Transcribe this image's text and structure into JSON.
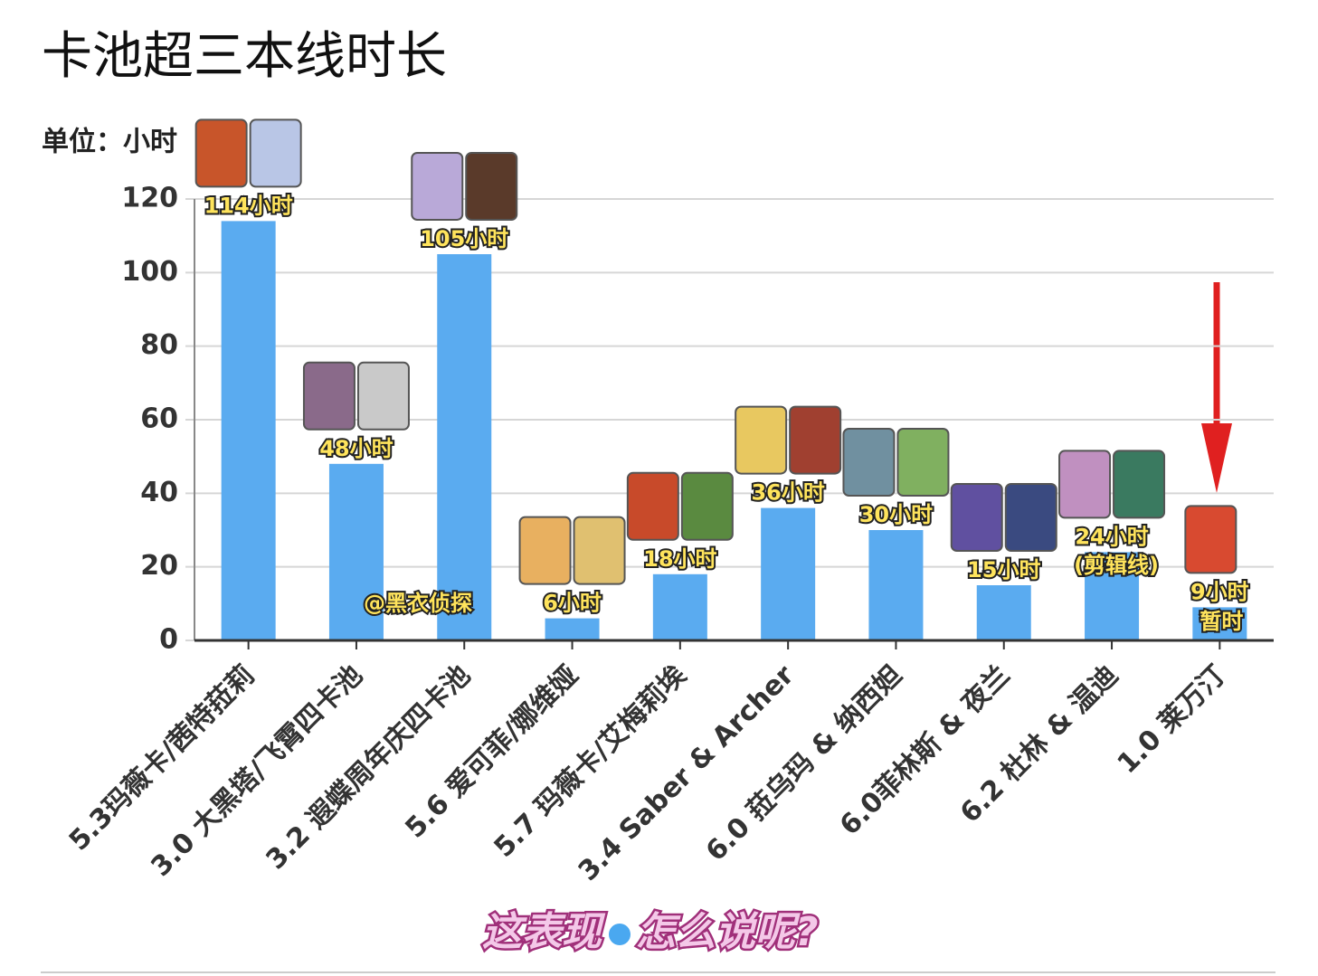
{
  "chart_data": {
    "type": "bar",
    "title": "卡池超三本线时长",
    "subtitle": "单位：小时",
    "categories": [
      "5.3玛薇卡/茜特菈莉",
      "3.0 大黑塔/飞霄四卡池",
      "3.2 遐蝶周年庆四卡池",
      "5.6 爱可菲/娜维娅",
      "5.7 玛薇卡/艾梅莉埃",
      "3.4 Saber & Archer",
      "6.0 菈乌玛 & 纳西妲",
      "6.0菲林斯 & 夜兰",
      "6.2 杜林 & 温迪",
      "1.0 莱万汀"
    ],
    "values": [
      114,
      48,
      105,
      6,
      18,
      36,
      30,
      15,
      24,
      9
    ],
    "value_labels": [
      "114小时",
      "48小时",
      "105小时",
      "6小时",
      "18小时",
      "36小时",
      "30小时",
      "15小时",
      "24小时",
      "9小时"
    ],
    "color": "#5aabf0",
    "ylim": [
      0,
      120
    ],
    "yticks": [
      0,
      20,
      40,
      60,
      80,
      100,
      120
    ],
    "grid": true,
    "annotations": [
      "(剪辑线)",
      "暂时"
    ],
    "watermark": "@黑衣侦探",
    "caption": [
      "这表现",
      "怎么说呢?"
    ]
  }
}
